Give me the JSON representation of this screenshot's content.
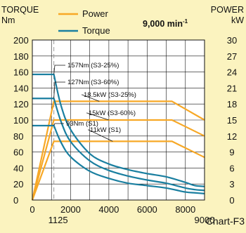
{
  "header": {
    "left_title": "TORQUE",
    "left_unit": "Nm",
    "right_title": "POWER",
    "right_unit": "kW",
    "speed_label": "9,000 min",
    "speed_sup": "-1",
    "chart_id": "Chart-F3"
  },
  "legend": [
    {
      "label": "Power",
      "color": "#f7a826"
    },
    {
      "label": "Torque",
      "color": "#1a7fa0"
    }
  ],
  "colors": {
    "power": "#f7a826",
    "torque": "#1a7fa0",
    "background": "#fbf3bf",
    "plot_bg": "#ffffff",
    "grid": "#111111"
  },
  "chart_data": {
    "type": "line",
    "x_range": [
      0,
      9000
    ],
    "xticks": [
      0,
      2000,
      4000,
      6000,
      8000,
      9000
    ],
    "xtick_labels": [
      "0",
      "2000",
      "4000",
      "6000",
      "8000",
      "9000"
    ],
    "x_marker": {
      "value": 1125,
      "label": "1125"
    },
    "y_left": {
      "title": "TORQUE",
      "unit": "Nm",
      "range": [
        0,
        200
      ],
      "ticks": [
        0,
        20,
        40,
        60,
        80,
        100,
        120,
        140,
        160,
        180,
        200
      ]
    },
    "y_right": {
      "title": "POWER",
      "unit": "kW",
      "range": [
        0,
        30
      ],
      "ticks": [
        0,
        3,
        6,
        9,
        12,
        15,
        18,
        21,
        24,
        27,
        30
      ]
    },
    "torque_series": [
      {
        "name": "157Nm (S3-25%)",
        "points": [
          [
            0,
            157
          ],
          [
            1125,
            157
          ],
          [
            1500,
            118
          ],
          [
            2000,
            88
          ],
          [
            3000,
            58
          ],
          [
            4000,
            45
          ],
          [
            5000,
            38
          ],
          [
            6000,
            33
          ],
          [
            7000,
            29
          ],
          [
            8000,
            22
          ],
          [
            8500,
            18
          ],
          [
            9000,
            17
          ]
        ]
      },
      {
        "name": "127Nm (S3-60%)",
        "points": [
          [
            0,
            127
          ],
          [
            1125,
            127
          ],
          [
            1500,
            98
          ],
          [
            2000,
            73
          ],
          [
            3000,
            49
          ],
          [
            4000,
            37
          ],
          [
            5000,
            30
          ],
          [
            6000,
            25
          ],
          [
            7000,
            21
          ],
          [
            8000,
            15
          ],
          [
            8500,
            13
          ],
          [
            9000,
            12
          ]
        ]
      },
      {
        "name": "93Nm (S1)",
        "points": [
          [
            0,
            93
          ],
          [
            1125,
            93
          ],
          [
            1500,
            72
          ],
          [
            2000,
            54
          ],
          [
            3000,
            36
          ],
          [
            4000,
            27
          ],
          [
            5000,
            21
          ],
          [
            6000,
            18
          ],
          [
            7000,
            15
          ],
          [
            8000,
            10
          ],
          [
            8500,
            9
          ],
          [
            9000,
            8
          ]
        ]
      }
    ],
    "power_series": [
      {
        "name": "18.5kW (S3-25%)",
        "points": [
          [
            0,
            0
          ],
          [
            1125,
            18.5
          ],
          [
            7300,
            18.5
          ],
          [
            9000,
            15
          ]
        ]
      },
      {
        "name": "15kW (S3-60%)",
        "points": [
          [
            0,
            0
          ],
          [
            1125,
            15
          ],
          [
            7300,
            15
          ],
          [
            9000,
            12
          ]
        ]
      },
      {
        "name": "11kW (S1)",
        "points": [
          [
            0,
            0
          ],
          [
            1125,
            11
          ],
          [
            7300,
            11
          ],
          [
            9000,
            8
          ]
        ]
      }
    ]
  }
}
